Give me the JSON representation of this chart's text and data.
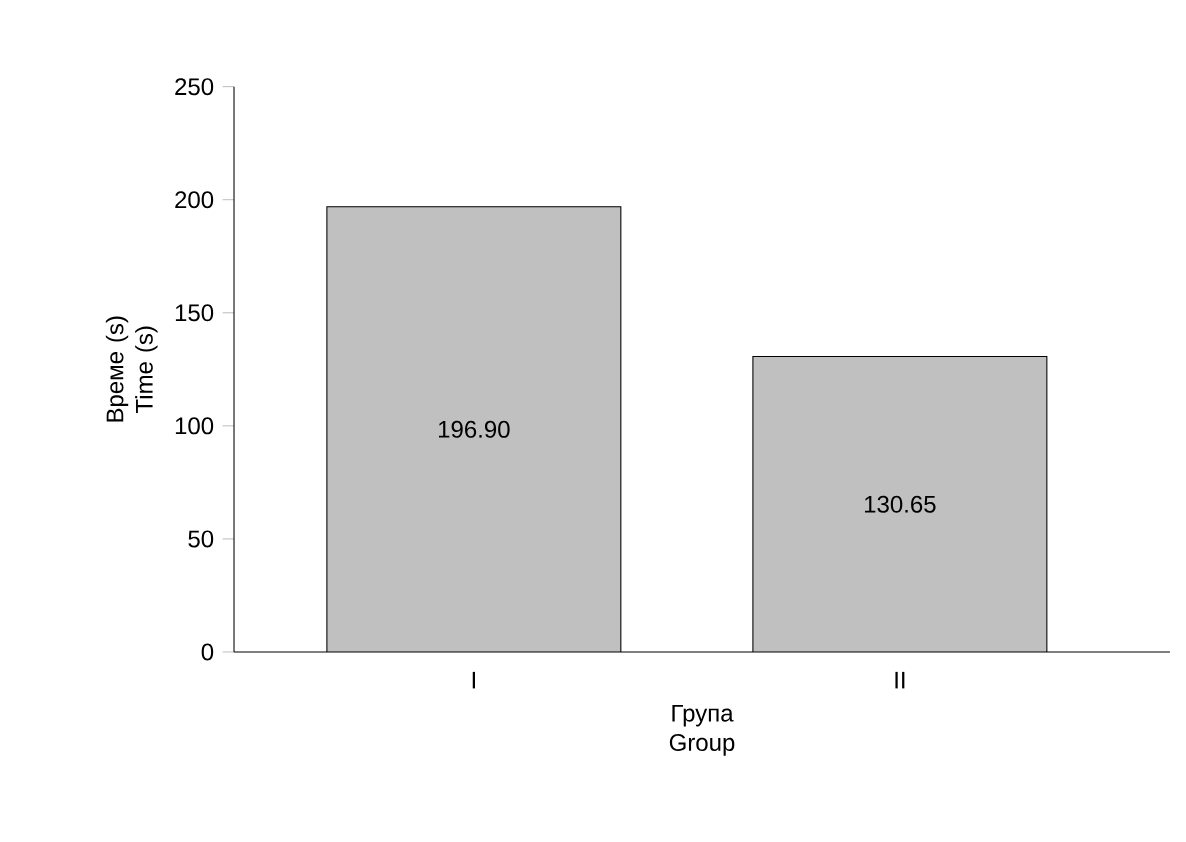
{
  "chart_data": {
    "type": "bar",
    "categories": [
      "I",
      "II"
    ],
    "values": [
      196.9,
      130.65
    ],
    "value_labels": [
      "196.90",
      "130.65"
    ],
    "color": "#c0c0c0",
    "xlabel": "Група Group",
    "ylabel": "Време (s) Time (s)",
    "ylim": [
      0,
      250
    ],
    "yticks": [
      0,
      50,
      100,
      150,
      200,
      250
    ]
  }
}
